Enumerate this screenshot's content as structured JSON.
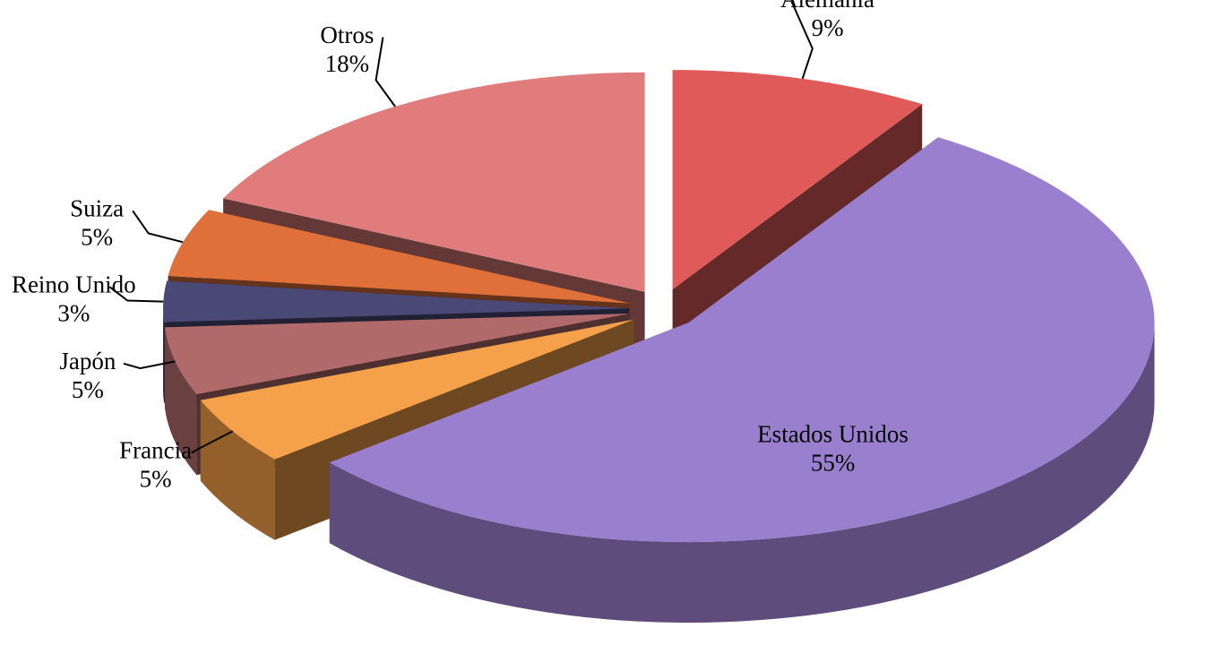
{
  "chart_data": {
    "type": "pie",
    "categories": [
      "Alemania",
      "Estados Unidos",
      "Francia",
      "Japón",
      "Reino Unido",
      "Suiza",
      "Otros"
    ],
    "values": [
      9,
      55,
      5,
      5,
      3,
      5,
      18
    ],
    "value_labels": [
      "9%",
      "55%",
      "5%",
      "5%",
      "3%",
      "5%",
      "18%"
    ],
    "colors": [
      "#e05a5a",
      "#9b7fcf",
      "#f5a04a",
      "#b06a6a",
      "#4a4874",
      "#e0703a",
      "#e07c7c"
    ]
  }
}
